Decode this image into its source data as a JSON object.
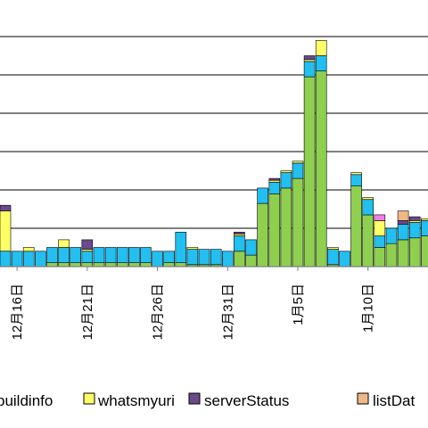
{
  "chart_data": {
    "type": "bar",
    "stacked": true,
    "grid": true,
    "legend_position": "bottom",
    "x_tick_labels": [
      "12月16日",
      "12月21日",
      "12月26日",
      "12月31日",
      "1月5日",
      "1月10日"
    ],
    "y_gridlines": [
      1,
      2,
      3,
      4,
      5,
      6
    ],
    "ylim": [
      0,
      6
    ],
    "legend": [
      {
        "label": "buildinfo",
        "color": "#8fcf4f"
      },
      {
        "label": "whatsmyuri",
        "color": "#ffff66"
      },
      {
        "label": "serverStatus",
        "color": "#6a4a8a"
      },
      {
        "label": "listDat",
        "color": "#f0b888"
      }
    ],
    "series": [
      {
        "key": "green",
        "color": "#8fcf4f",
        "values": [
          0.0,
          0.0,
          0.0,
          0.0,
          0.1,
          0.1,
          0.1,
          0.1,
          0.1,
          0.1,
          0.1,
          0.1,
          0.1,
          0.0,
          0.1,
          0.1,
          0.05,
          0.05,
          0.05,
          0.0,
          0.4,
          0.3,
          1.65,
          1.9,
          2.05,
          2.3,
          4.95,
          5.1,
          0.05,
          0.0,
          2.1,
          1.35,
          0.5,
          0.6,
          0.7,
          0.75,
          0.8,
          0.7
        ]
      },
      {
        "key": "cyan",
        "color": "#22bff0",
        "values": [
          0.4,
          0.4,
          0.4,
          0.4,
          0.4,
          0.4,
          0.4,
          0.3,
          0.4,
          0.4,
          0.4,
          0.4,
          0.4,
          0.4,
          0.3,
          0.8,
          0.4,
          0.4,
          0.4,
          0.4,
          0.4,
          0.4,
          0.4,
          0.3,
          0.4,
          0.4,
          0.4,
          0.4,
          0.4,
          0.4,
          0.3,
          0.4,
          0.3,
          0.4,
          0.4,
          0.4,
          0.4,
          0.4
        ]
      },
      {
        "key": "yellow",
        "color": "#ffff66",
        "values": [
          1.05,
          0.0,
          0.1,
          0.0,
          0.0,
          0.2,
          0.0,
          0.05,
          0.0,
          0.0,
          0.0,
          0.0,
          0.0,
          0.0,
          0.0,
          0.0,
          0.05,
          0.0,
          0.0,
          0.0,
          0.05,
          0.0,
          0.0,
          0.05,
          0.05,
          0.05,
          0.05,
          0.4,
          0.05,
          0.0,
          0.05,
          0.05,
          0.4,
          0.0,
          0.0,
          0.05,
          0.05,
          0.0
        ]
      },
      {
        "key": "purple",
        "color": "#6a4a8a",
        "values": [
          0.15,
          0.0,
          0.0,
          0.0,
          0.0,
          0.0,
          0.0,
          0.25,
          0.0,
          0.0,
          0.0,
          0.0,
          0.0,
          0.0,
          0.0,
          0.0,
          0.0,
          0.0,
          0.0,
          0.0,
          0.05,
          0.0,
          0.0,
          0.05,
          0.0,
          0.0,
          0.1,
          0.0,
          0.0,
          0.0,
          0.0,
          0.0,
          0.0,
          0.0,
          0.1,
          0.1,
          0.0,
          0.0
        ]
      },
      {
        "key": "pink",
        "color": "#f07ef0",
        "values": [
          0.0,
          0.0,
          0.0,
          0.0,
          0.0,
          0.0,
          0.0,
          0.0,
          0.0,
          0.0,
          0.0,
          0.0,
          0.0,
          0.0,
          0.0,
          0.0,
          0.0,
          0.0,
          0.0,
          0.0,
          0.0,
          0.0,
          0.0,
          0.0,
          0.0,
          0.0,
          0.0,
          0.0,
          0.0,
          0.0,
          0.0,
          0.0,
          0.15,
          0.0,
          0.0,
          0.0,
          0.0,
          0.0
        ]
      },
      {
        "key": "orange",
        "color": "#f0b888",
        "values": [
          0.0,
          0.0,
          0.0,
          0.0,
          0.0,
          0.0,
          0.0,
          0.0,
          0.0,
          0.0,
          0.0,
          0.0,
          0.0,
          0.0,
          0.0,
          0.0,
          0.0,
          0.0,
          0.0,
          0.0,
          0.0,
          0.0,
          0.0,
          0.0,
          0.0,
          0.0,
          0.0,
          0.0,
          0.0,
          0.0,
          0.0,
          0.0,
          0.0,
          0.0,
          0.25,
          0.0,
          0.0,
          0.0
        ]
      }
    ]
  }
}
